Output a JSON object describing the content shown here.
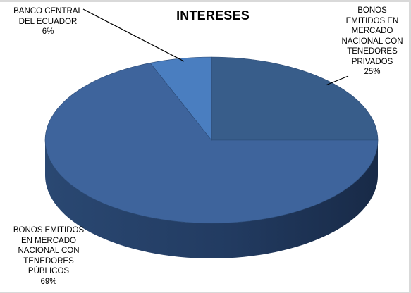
{
  "chart_data": {
    "type": "pie",
    "title": "INTERESES",
    "slices": [
      {
        "name": "BONOS EMITIDOS EN MERCADO NACIONAL CON TENEDORES PRIVADOS",
        "label_lines": [
          "BONOS",
          "EMITIDOS EN",
          "MERCADO",
          "NACIONAL CON",
          "TENEDORES",
          "PRIVADOS"
        ],
        "value": 25,
        "value_label": "25%",
        "color": "#385D8A"
      },
      {
        "name": "BONOS EMITIDOS EN MERCADO NACIONAL CON TENEDORES PÚBLICOS",
        "label_lines": [
          "BONOS EMITIDOS",
          "EN MERCADO",
          "NACIONAL CON",
          "TENEDORES",
          "PÚBLICOS"
        ],
        "value": 69,
        "value_label": "69%",
        "color": "#3E649C"
      },
      {
        "name": "BANCO CENTRAL DEL ECUADOR",
        "label_lines": [
          "BANCO CENTRAL",
          "DEL ECUADOR"
        ],
        "value": 6,
        "value_label": "6%",
        "color": "#4A7EC0"
      }
    ],
    "style": "3d",
    "legend": "none"
  }
}
